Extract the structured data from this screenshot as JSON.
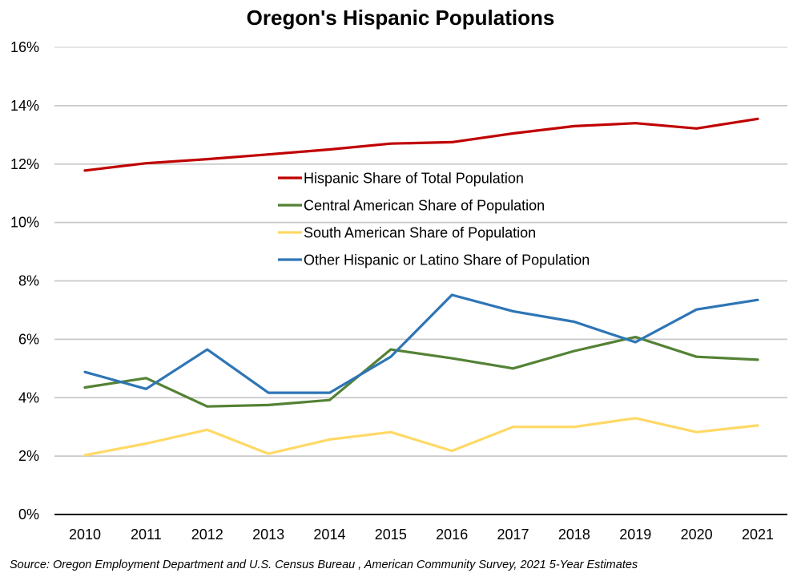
{
  "chart_data": {
    "type": "line",
    "title": "Oregon's Hispanic Populations",
    "xlabel": "",
    "ylabel": "",
    "x": [
      "2010",
      "2011",
      "2012",
      "2013",
      "2014",
      "2015",
      "2016",
      "2017",
      "2018",
      "2019",
      "2020",
      "2021"
    ],
    "ylim": [
      0,
      16
    ],
    "yticks": [
      0,
      2,
      4,
      6,
      8,
      10,
      12,
      14,
      16
    ],
    "ytick_labels": [
      "0%",
      "2%",
      "4%",
      "6%",
      "8%",
      "10%",
      "12%",
      "14%",
      "16%"
    ],
    "y_unit": "%",
    "grid": true,
    "legend_position": "center",
    "series": [
      {
        "name": "Hispanic Share of Total Population",
        "color": "#C00000",
        "values": [
          11.78,
          12.03,
          12.17,
          12.33,
          12.5,
          12.7,
          12.75,
          13.05,
          13.3,
          13.4,
          13.22,
          13.55
        ]
      },
      {
        "name": "Central American Share of Population",
        "color": "#548235",
        "values": [
          4.35,
          4.67,
          3.7,
          3.75,
          3.92,
          5.65,
          5.35,
          5.0,
          5.6,
          6.08,
          5.4,
          5.3
        ]
      },
      {
        "name": "South American Share of Population",
        "color": "#FFD966",
        "values": [
          2.03,
          2.43,
          2.9,
          2.08,
          2.57,
          2.82,
          2.18,
          3.0,
          3.0,
          3.3,
          2.82,
          3.05
        ]
      },
      {
        "name": "Other Hispanic or Latino Share of Population",
        "color": "#2E75B6",
        "values": [
          4.88,
          4.3,
          5.65,
          4.17,
          4.17,
          5.4,
          7.52,
          6.96,
          6.6,
          5.9,
          7.02,
          7.35
        ]
      }
    ],
    "source": "Source: Oregon Employment Department and U.S. Census Bureau , American Community Survey, 2021 5-Year Estimates"
  }
}
